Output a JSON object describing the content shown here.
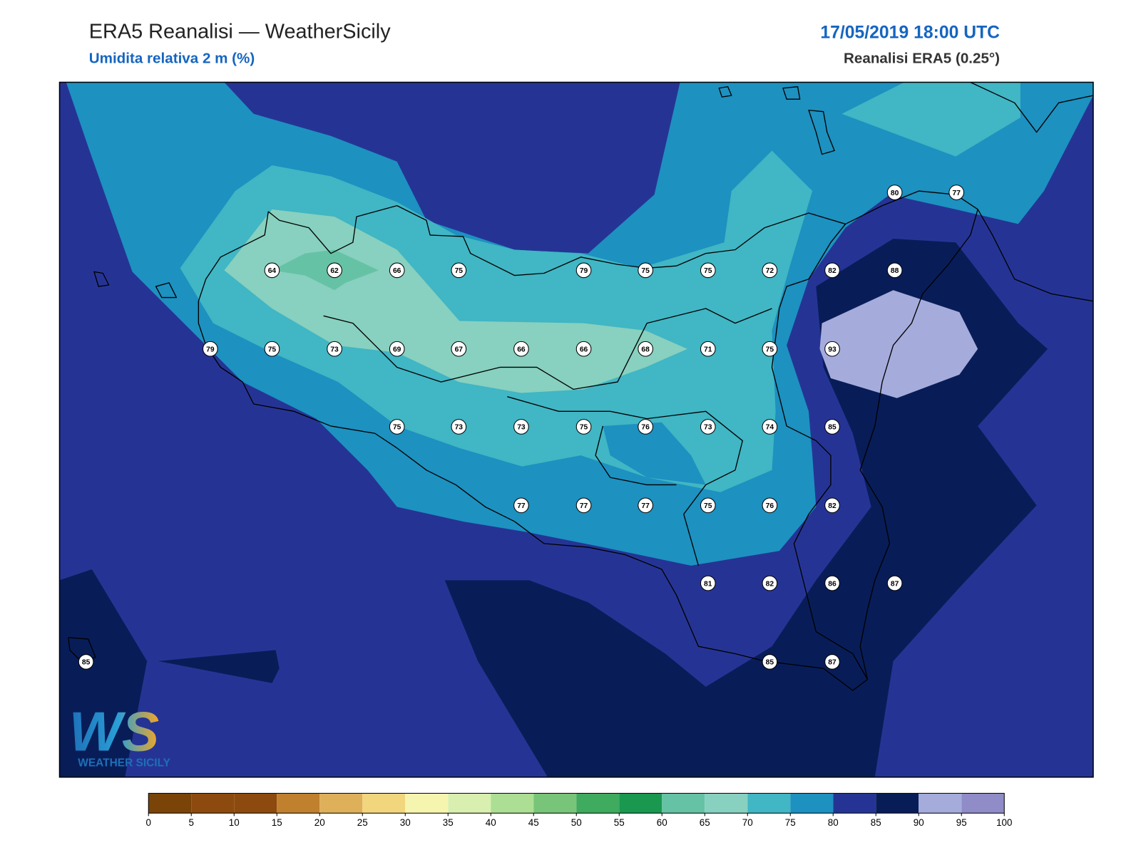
{
  "header": {
    "title": "ERA5 Reanalisi — WeatherSicily",
    "subtitle": "Umidita relativa 2 m (%)",
    "datetime": "17/05/2019 18:00 UTC",
    "source": "Reanalisi ERA5 (0.25°)"
  },
  "stations": [
    80,
    77,
    64,
    62,
    66,
    75,
    79,
    75,
    75,
    72,
    82,
    88,
    79,
    75,
    73,
    69,
    67,
    66,
    66,
    68,
    71,
    75,
    93,
    75,
    73,
    73,
    75,
    76,
    73,
    74,
    85,
    77,
    77,
    77,
    75,
    76,
    82,
    81,
    82,
    86,
    87,
    85,
    85,
    87
  ],
  "colorbar": {
    "ticks": [
      0,
      5,
      10,
      15,
      20,
      25,
      30,
      35,
      40,
      45,
      50,
      55,
      60,
      65,
      70,
      75,
      80,
      85,
      90,
      95,
      100
    ],
    "colors": [
      "#7a4308",
      "#8c4a0e",
      "#8c4a0e",
      "#c0802e",
      "#dfb05a",
      "#f2d67e",
      "#f6f5b0",
      "#d9efb0",
      "#acdf94",
      "#78c57a",
      "#3eab5e",
      "#1a9850",
      "#66c2a4",
      "#88d0bf",
      "#41b6c4",
      "#1d91c0",
      "#253494",
      "#081d58",
      "#a5acdc",
      "#8f8cc8"
    ]
  },
  "logo": {
    "mark": "WS",
    "text": "WEATHER SICILY"
  }
}
